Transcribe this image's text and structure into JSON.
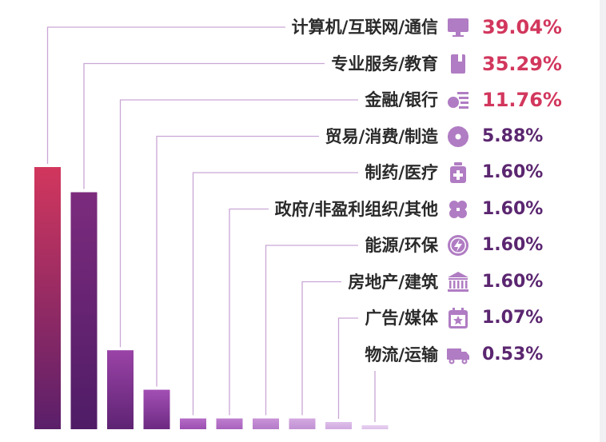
{
  "colors": {
    "top": "#d2375d",
    "mid": "#7a2b7c",
    "low": "#5a1f6a",
    "label_text": "#2a2a2a",
    "pct_top": "#d2375d",
    "pct_rest": "#5b2670",
    "icon": "#b07cc3"
  },
  "chart_data": {
    "type": "bar",
    "unit": "%",
    "categories": [
      "计算机/互联网/通信",
      "专业服务/教育",
      "金融/银行",
      "贸易/消费/制造",
      "制药/医疗",
      "政府/非盈利组织/其他",
      "能源/环保",
      "房地产/建筑",
      "广告/媒体",
      "物流/运输"
    ],
    "values": [
      39.04,
      35.29,
      11.76,
      5.88,
      1.6,
      1.6,
      1.6,
      1.6,
      1.07,
      0.53
    ],
    "value_labels": [
      "39.04%",
      "35.29%",
      "11.76%",
      "5.88%",
      "1.60%",
      "1.60%",
      "1.60%",
      "1.60%",
      "1.07%",
      "0.53%"
    ],
    "icons": [
      "monitor-icon",
      "book-icon",
      "money-icon",
      "gear-icon",
      "medkit-icon",
      "clover-icon",
      "energy-icon",
      "bank-icon",
      "calendar-star-icon",
      "truck-icon"
    ],
    "highlight_count": 3,
    "ylim": [
      0,
      39.04
    ],
    "grid": false,
    "legend": "none"
  }
}
